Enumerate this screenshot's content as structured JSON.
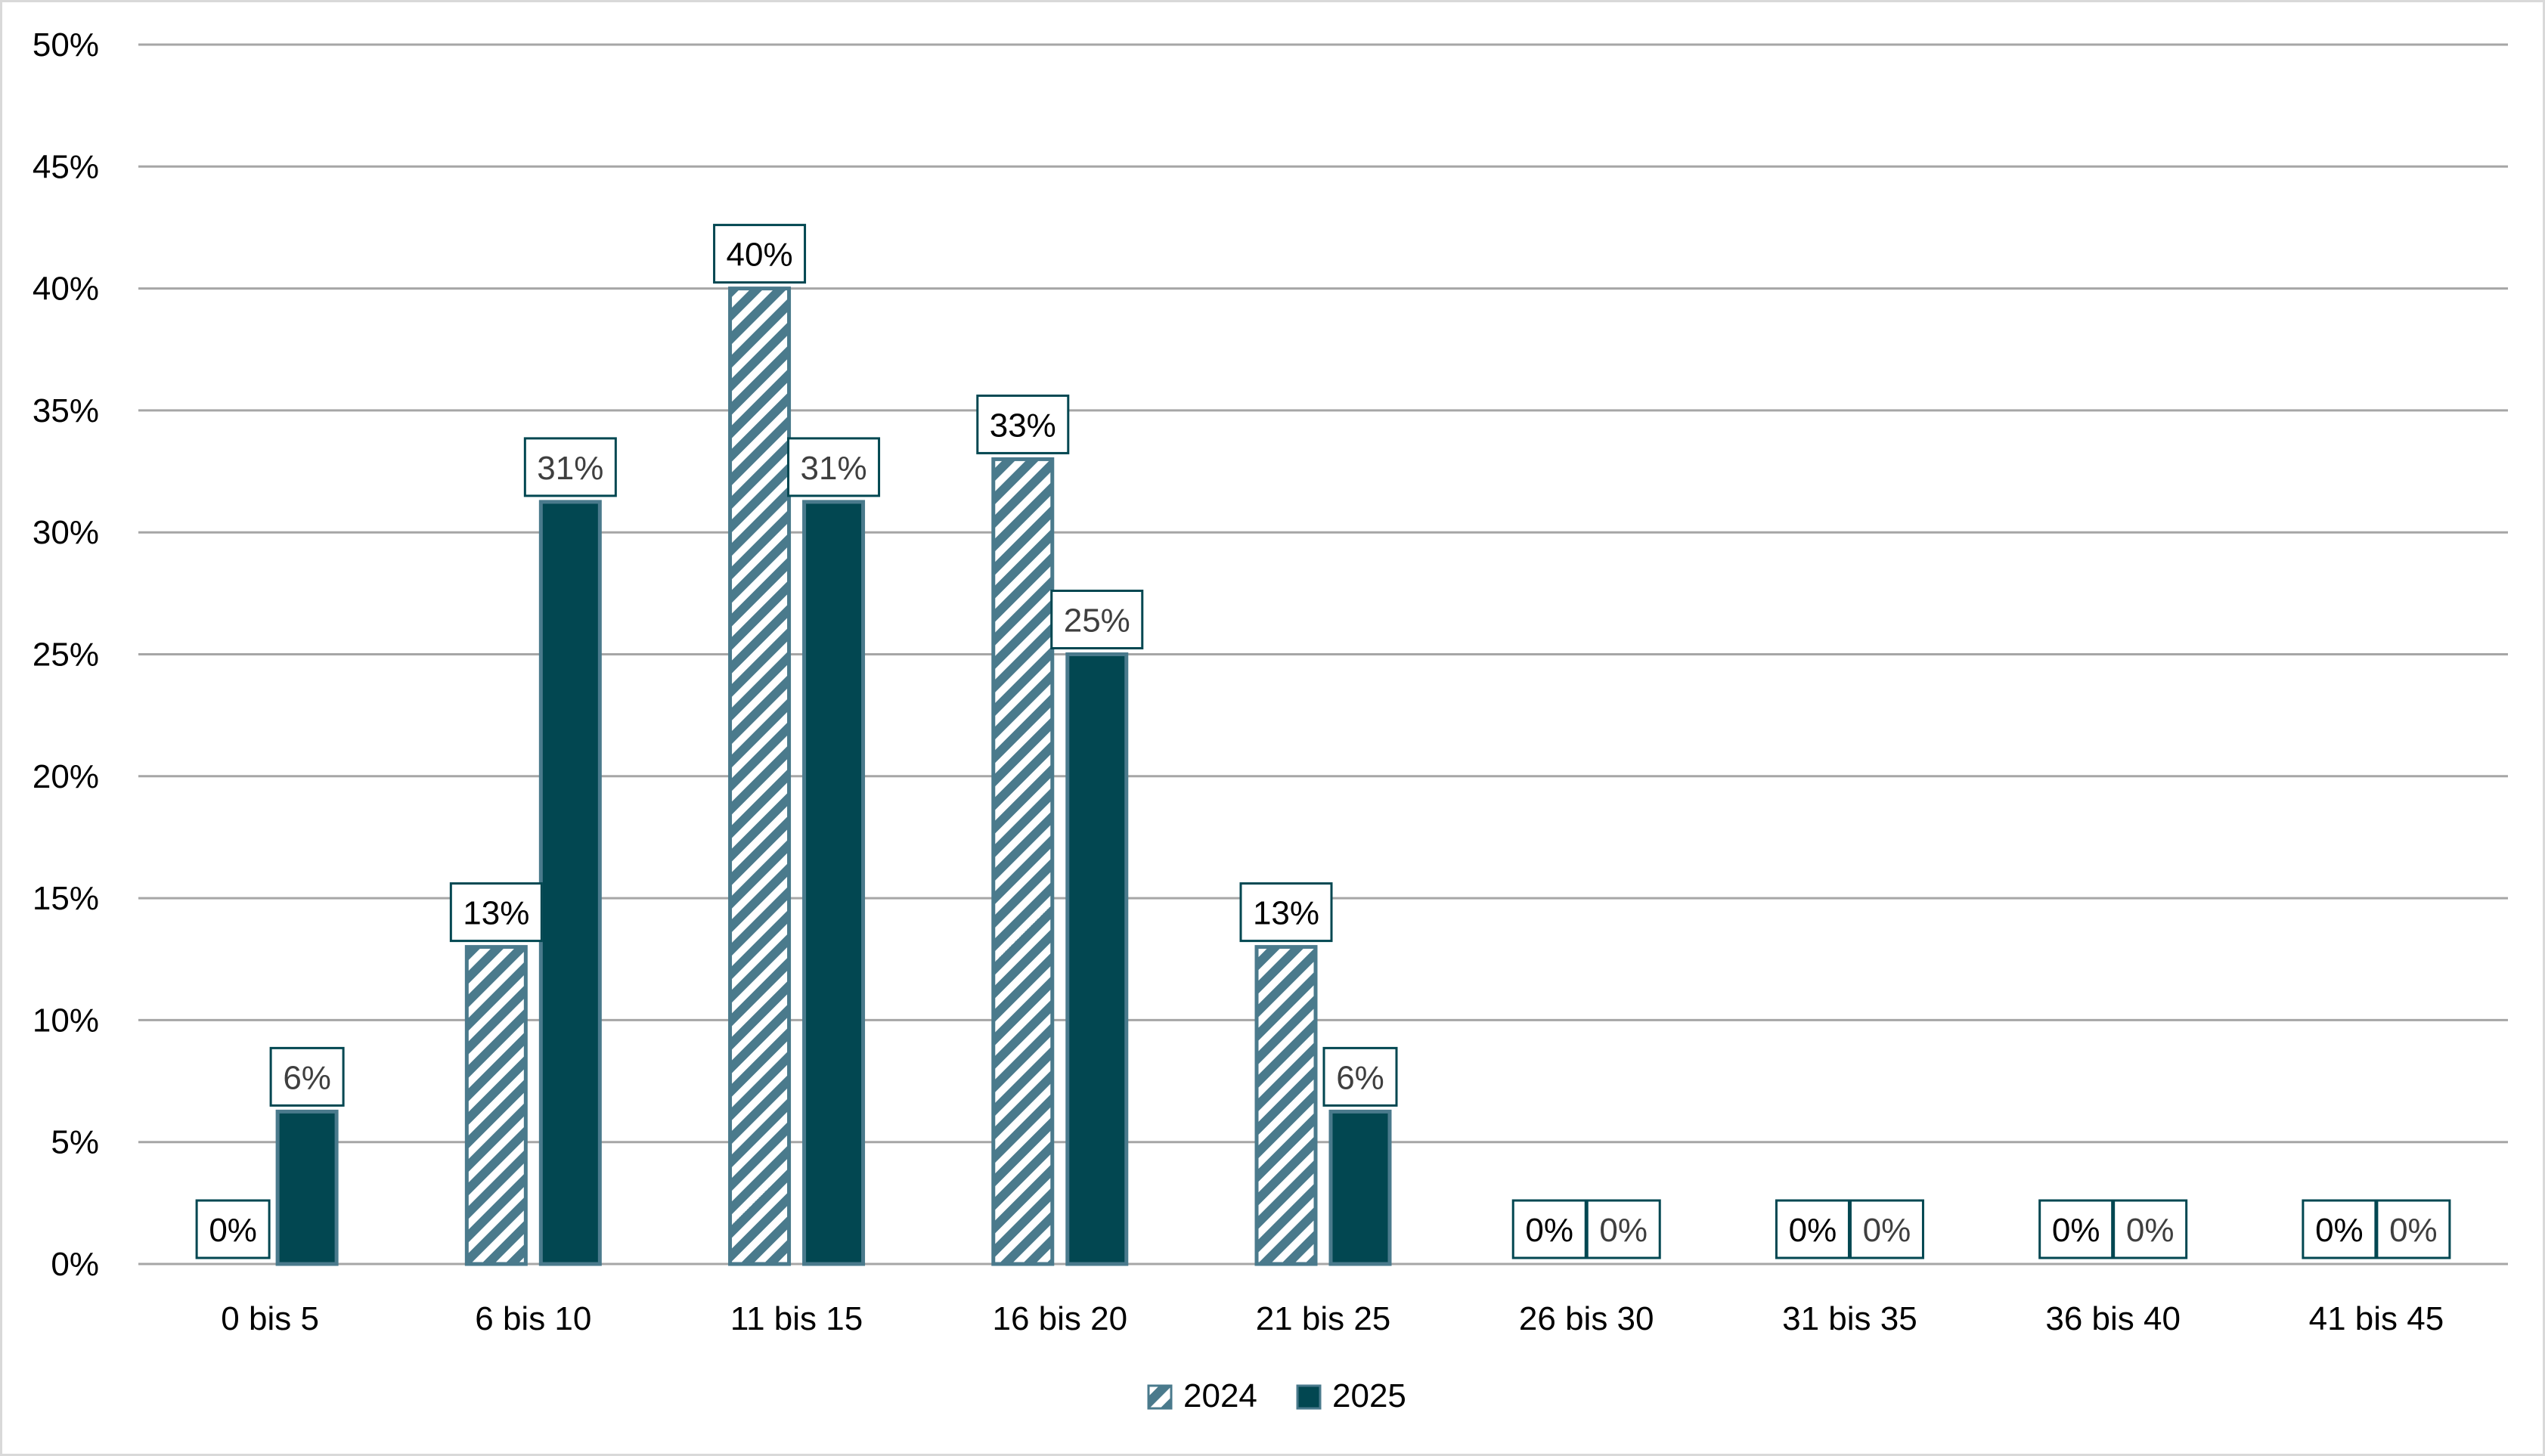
{
  "chart_data": {
    "type": "bar",
    "categories": [
      "0 bis 5",
      "6 bis 10",
      "11 bis 15",
      "16 bis 20",
      "21 bis 25",
      "26 bis 30",
      "31 bis 35",
      "36 bis 40",
      "41 bis 45"
    ],
    "series": [
      {
        "name": "2024",
        "values": [
          0,
          13,
          40,
          33,
          13,
          0,
          0,
          0,
          0
        ],
        "labels": [
          "0%",
          "13%",
          "40%",
          "33%",
          "13%",
          "0%",
          "0%",
          "0%",
          "0%"
        ],
        "color": "#4a7a8c",
        "pattern": "diagonal-stripes"
      },
      {
        "name": "2025",
        "values": [
          6.25,
          31.25,
          31.25,
          25,
          6.25,
          0,
          0,
          0,
          0
        ],
        "labels": [
          "6%",
          "31%",
          "31%",
          "25%",
          "6%",
          "0%",
          "0%",
          "0%",
          "0%"
        ],
        "color": "#024751",
        "pattern": "solid"
      }
    ],
    "ylim": [
      0,
      50
    ],
    "yticks": [
      "0%",
      "5%",
      "10%",
      "15%",
      "20%",
      "25%",
      "30%",
      "35%",
      "40%",
      "45%",
      "50%"
    ],
    "grid": true,
    "legend": "bottom-center",
    "title": "",
    "xlabel": "",
    "ylabel": ""
  }
}
